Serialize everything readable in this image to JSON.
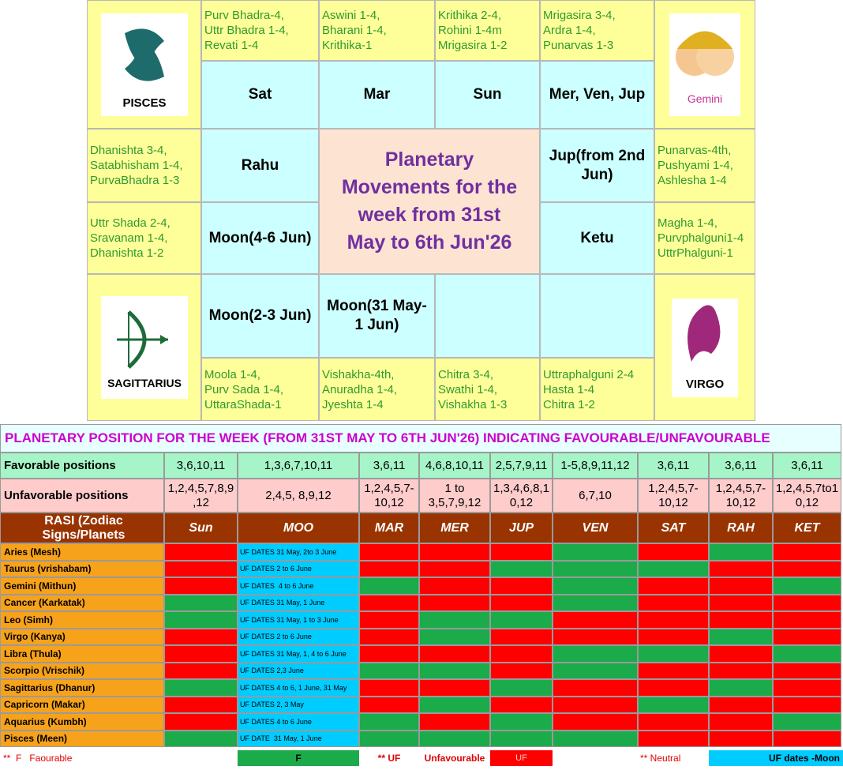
{
  "rasi_chart": {
    "title": [
      "Planetary",
      "Movements for the",
      "week from 31st",
      "May to 6th Jun'26"
    ],
    "signs": {
      "pisces": "PISCES",
      "gemini": "Gemini",
      "sagittarius": "SAGITTARIUS",
      "virgo": "VIRGO"
    },
    "houses": [
      {
        "nakshatra": [
          "Purv Bhadra-4,",
          "Uttr Bhadra 1-4,",
          "Revati 1-4"
        ],
        "planets": [
          "Sat"
        ]
      },
      {
        "nakshatra": [
          "Aswini 1-4,",
          "Bharani 1-4,",
          "Krithika-1"
        ],
        "planets": [
          "Mar"
        ]
      },
      {
        "nakshatra": [
          "Krithika 2-4,",
          "Rohini 1-4m",
          "Mrigasira 1-2"
        ],
        "planets": [
          "Sun"
        ]
      },
      {
        "nakshatra": [
          "Mrigasira 3-4,",
          "Ardra 1-4,",
          "Punarvas 1-3"
        ],
        "planets": [
          "Mer, Ven, Jup"
        ]
      },
      {
        "nakshatra": [
          "Punarvas-4th,",
          "Pushyami 1-4,",
          "Ashlesha 1-4"
        ],
        "planets": [
          "Jup(from 2nd",
          "Jun)"
        ]
      },
      {
        "nakshatra": [
          "Magha 1-4,",
          "Purvphalguni1-4",
          "UttrPhalguni-1"
        ],
        "planets": [
          "Ketu"
        ]
      },
      {
        "nakshatra": [
          "Uttraphalguni 2-4",
          "Hasta 1-4",
          "Chitra 1-2"
        ]
      },
      {
        "nakshatra": [
          "Chitra 3-4,",
          "Swathi 1-4,",
          "Vishakha 1-3"
        ]
      },
      {
        "nakshatra": [
          "Vishakha-4th,",
          "Anuradha 1-4,",
          "Jyeshta 1-4"
        ],
        "planets": [
          "Moon(31 May-",
          "1 Jun)"
        ]
      },
      {
        "nakshatra": [
          "Moola 1-4,",
          "Purv Sada 1-4,",
          "UttaraShada-1"
        ],
        "planets": [
          "Moon(2-3 Jun)"
        ]
      },
      {
        "nakshatra": [
          "Uttr Shada 2-4,",
          "Sravanam 1-4,",
          "Dhanishta 1-2"
        ],
        "planets": [
          "Moon(4-6 Jun)"
        ]
      },
      {
        "nakshatra": [
          "Dhanishta 3-4,",
          "Satabhisham 1-4,",
          "PurvaBhadra 1-3"
        ],
        "planets": [
          "Rahu"
        ]
      }
    ]
  },
  "table": {
    "title": "PLANETARY POSITION FOR THE WEEK (FROM 31ST MAY TO 6TH JUN'26) INDICATING FAVOURABLE/UNFAVOURABLE",
    "favorable": {
      "label": "Favorable positions",
      "values": [
        [
          "3,6,10,11"
        ],
        [
          "1,3,6,7,10,11"
        ],
        [
          "3,6,11"
        ],
        [
          "4,6,8,10,11"
        ],
        [
          "2,5,7,9,11"
        ],
        [
          "1-5,8,9,11,12"
        ],
        [
          "3,6,11"
        ],
        [
          "3,6,11"
        ],
        [
          "3,6,11"
        ]
      ]
    },
    "unfavorable": {
      "label": "Unfavorable positions",
      "values": [
        [
          "1,2,4,5,7,8,9",
          ",12"
        ],
        [
          "2,4,5, 8,9,12"
        ],
        [
          "1,2,4,5,7-",
          "10,12"
        ],
        [
          "1 to",
          "3,5,7,9,12"
        ],
        [
          "1,3,4,6,8,1",
          "0,12"
        ],
        [
          "6,7,10"
        ],
        [
          "1,2,4,5,7-",
          "10,12"
        ],
        [
          "1,2,4,5,7-",
          "10,12"
        ],
        [
          "1,2,4,5,7to1",
          "0,12"
        ]
      ]
    },
    "header": [
      "RASI (Zodiac Signs/Planets",
      "Sun",
      "MOO",
      "MAR",
      "MER",
      "JUP",
      "VEN",
      "SAT",
      "RAH",
      "KET"
    ],
    "red": "#ff0000",
    "green": "#1bab4a",
    "cyan": "#00ccff",
    "rows": [
      {
        "sign": "Aries (Mesh)",
        "moon": "UF DATES 31 May, 2to 3 June",
        "colors": [
          "red",
          "red",
          "red",
          "red",
          "green",
          "red",
          "green",
          "red"
        ]
      },
      {
        "sign": "Taurus (vrishabam)",
        "moon": "UF DATES 2 to 6 June",
        "colors": [
          "red",
          "red",
          "red",
          "green",
          "green",
          "green",
          "red",
          "red"
        ]
      },
      {
        "sign": "Gemini (Mithun)",
        "moon": "UF DATES  4 to 6 June",
        "colors": [
          "red",
          "green",
          "red",
          "red",
          "green",
          "red",
          "red",
          "green"
        ]
      },
      {
        "sign": "Cancer (Karkatak)",
        "moon": "UF DATES 31 May, 1 June",
        "colors": [
          "green",
          "red",
          "red",
          "red",
          "green",
          "red",
          "red",
          "red"
        ]
      },
      {
        "sign": "Leo (Simh)",
        "moon": "UF DATES 31 May, 1 to 3 June",
        "colors": [
          "green",
          "red",
          "green",
          "green",
          "red",
          "red",
          "red",
          "red"
        ]
      },
      {
        "sign": "Virgo (Kanya)",
        "moon": "UF DATES 2 to 6 June",
        "colors": [
          "red",
          "red",
          "green",
          "red",
          "red",
          "red",
          "green",
          "red"
        ]
      },
      {
        "sign": "Libra (Thula)",
        "moon": "UF DATES 31 May, 1, 4 to 6 June",
        "colors": [
          "red",
          "red",
          "red",
          "red",
          "green",
          "green",
          "red",
          "green"
        ]
      },
      {
        "sign": "Scorpio (Vrischik)",
        "moon": "UF DATES 2,3 June",
        "colors": [
          "red",
          "green",
          "green",
          "red",
          "green",
          "red",
          "red",
          "red"
        ]
      },
      {
        "sign": "Sagittarius (Dhanur)",
        "moon": "UF DATES 4 to 6, 1 June, 31 May",
        "colors": [
          "green",
          "red",
          "red",
          "green",
          "red",
          "red",
          "green",
          "red"
        ]
      },
      {
        "sign": "Capricorn (Makar)",
        "moon": "UF DATES 2, 3 May",
        "colors": [
          "red",
          "red",
          "green",
          "red",
          "red",
          "green",
          "red",
          "red"
        ]
      },
      {
        "sign": "Aquarius (Kumbh)",
        "moon": "UF DATES 4 to 6 June",
        "colors": [
          "red",
          "green",
          "red",
          "green",
          "red",
          "red",
          "red",
          "green"
        ]
      },
      {
        "sign": "Pisces (Meen)",
        "moon": "UF DATE  31 May, 1 June",
        "colors": [
          "green",
          "green",
          "green",
          "green",
          "green",
          "red",
          "red",
          "red"
        ]
      }
    ],
    "legend": {
      "favourable_note": "**  F   Faourable",
      "f_box": "F",
      "uf_note": "** UF",
      "unfavourable": "Unfavourable",
      "uf_box": "UF",
      "neutral_note": "** Neutral",
      "moon_box": "UF dates -Moon"
    }
  }
}
